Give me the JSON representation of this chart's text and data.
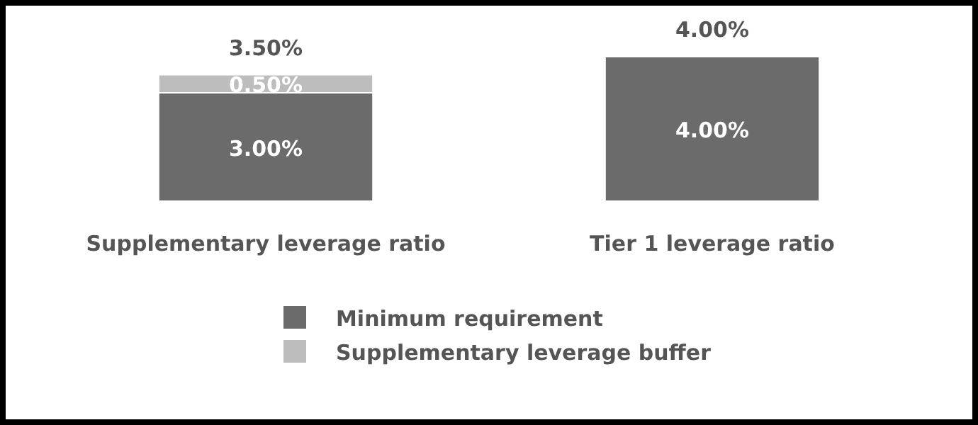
{
  "chart_data": {
    "type": "bar",
    "stacked": true,
    "legend": "bottom",
    "categories": [
      "Supplementary leverage ratio",
      "Tier 1 leverage ratio"
    ],
    "series": [
      {
        "name": "Minimum requirement",
        "color": "#6b6b6b",
        "values": [
          3.0,
          4.0
        ],
        "value_labels": [
          "3.00%",
          "4.00%"
        ]
      },
      {
        "name": "Supplementary leverage buffer",
        "color": "#bdbdbd",
        "values": [
          0.5,
          null
        ],
        "value_labels": [
          "0.50%",
          null
        ]
      }
    ],
    "totals": [
      "3.50%",
      "4.00%"
    ]
  }
}
